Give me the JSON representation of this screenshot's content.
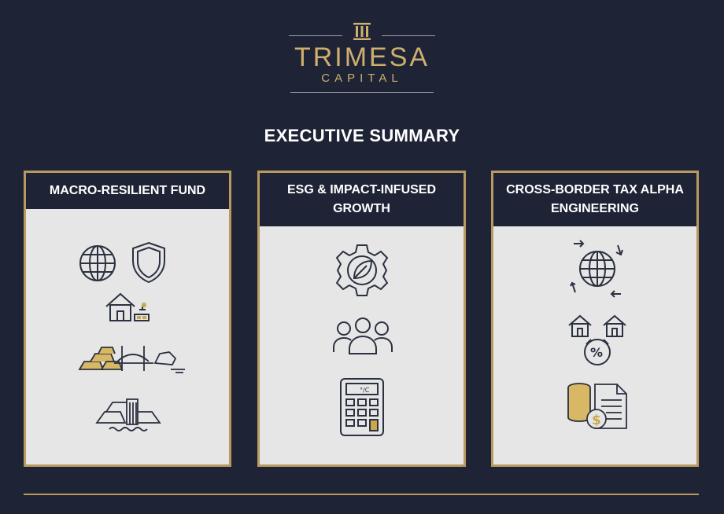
{
  "logo": {
    "name": "TRIMESA",
    "subname": "CAPITAL",
    "mark_icon": "pillar-columns-icon"
  },
  "title": "EXECUTIVE SUMMARY",
  "cards": [
    {
      "heading": "MACRO-RESILIENT FUND",
      "icons": [
        "globe-icon",
        "shield-icon",
        "house-icon",
        "gold-bars-icon",
        "bridge-icon",
        "rock-icon",
        "waterfall-gold-icon"
      ]
    },
    {
      "heading": "ESG & IMPACT-INFUSED GROWTH",
      "icons": [
        "leaf-gear-icon",
        "people-group-icon",
        "calculator-icon"
      ]
    },
    {
      "heading": "CROSS-BORDER TAX ALPHA ENGINEERING",
      "icons": [
        "globe-arrows-icon",
        "houses-icon",
        "percent-icon",
        "coins-icon",
        "document-icon"
      ]
    }
  ],
  "colors": {
    "background": "#1e2436",
    "gold": "#b89a5e",
    "logo_gold": "#cfae6e",
    "card_fill": "#e6e6e6",
    "icon_stroke": "#2b3140"
  }
}
